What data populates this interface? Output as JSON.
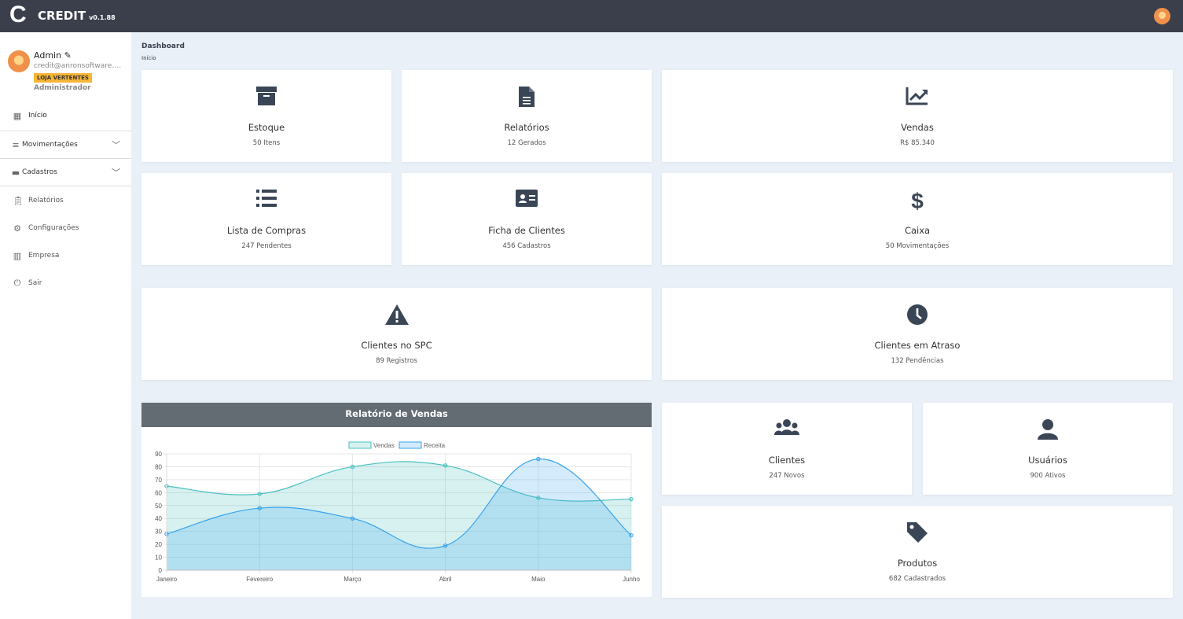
{
  "header": {
    "logo": "C",
    "app_name": "CREDIT",
    "version": "v0.1.88"
  },
  "profile": {
    "name": "Admin",
    "email": "credit@anronsoftware.com",
    "store_badge": "LOJA VERTENTES",
    "role": "Administrador"
  },
  "sidebar": {
    "items": [
      {
        "label": "Início",
        "icon": "dashboard-icon"
      },
      {
        "label": "Movimentações",
        "icon": "database-icon"
      },
      {
        "label": "Cadastros",
        "icon": "archive-icon"
      },
      {
        "label": "Relatórios",
        "icon": "clipboard-icon"
      },
      {
        "label": "Configurações",
        "icon": "gear-icon"
      },
      {
        "label": "Empresa",
        "icon": "building-icon"
      },
      {
        "label": "Sair",
        "icon": "power-icon"
      }
    ]
  },
  "page": {
    "title": "Dashboard",
    "breadcrumb": "Início"
  },
  "cards": [
    {
      "title": "Estoque",
      "sub": "50 Itens",
      "icon": "archive-icon"
    },
    {
      "title": "Relatórios",
      "sub": "12 Gerados",
      "icon": "file-icon"
    },
    {
      "title": "Vendas",
      "sub": "R$ 85.340",
      "icon": "chart-line-icon"
    },
    {
      "title": "Lista de Compras",
      "sub": "247 Pendentes",
      "icon": "list-icon"
    },
    {
      "title": "Ficha de Clientes",
      "sub": "456 Cadastros",
      "icon": "id-card-icon"
    },
    {
      "title": "Caixa",
      "sub": "50 Movimentações",
      "icon": "dollar-icon"
    },
    {
      "title": "Clientes no SPC",
      "sub": "89 Registros",
      "icon": "warning-icon"
    },
    {
      "title": "Clientes em Atraso",
      "sub": "132 Pendências",
      "icon": "clock-icon"
    },
    {
      "title": "Clientes",
      "sub": "247 Novos",
      "icon": "users-icon"
    },
    {
      "title": "Usuários",
      "sub": "900 Ativos",
      "icon": "user-icon"
    },
    {
      "title": "Produtos",
      "sub": "682 Cadastrados",
      "icon": "tag-icon"
    }
  ],
  "chart_data": {
    "type": "area",
    "title": "Relatório de Vendas",
    "categories": [
      "Janeiro",
      "Fevereiro",
      "Março",
      "Abril",
      "Maio",
      "Junho"
    ],
    "series": [
      {
        "name": "Vendas",
        "values": [
          65,
          59,
          80,
          81,
          56,
          55
        ],
        "color": "#4bc0c0"
      },
      {
        "name": "Receita",
        "values": [
          28,
          48,
          40,
          19,
          86,
          27
        ],
        "color": "#36a2eb"
      }
    ],
    "ylim": [
      0,
      90
    ],
    "yticks": [
      0,
      10,
      20,
      30,
      40,
      50,
      60,
      70,
      80,
      90
    ],
    "grid": true,
    "legend": "top"
  }
}
